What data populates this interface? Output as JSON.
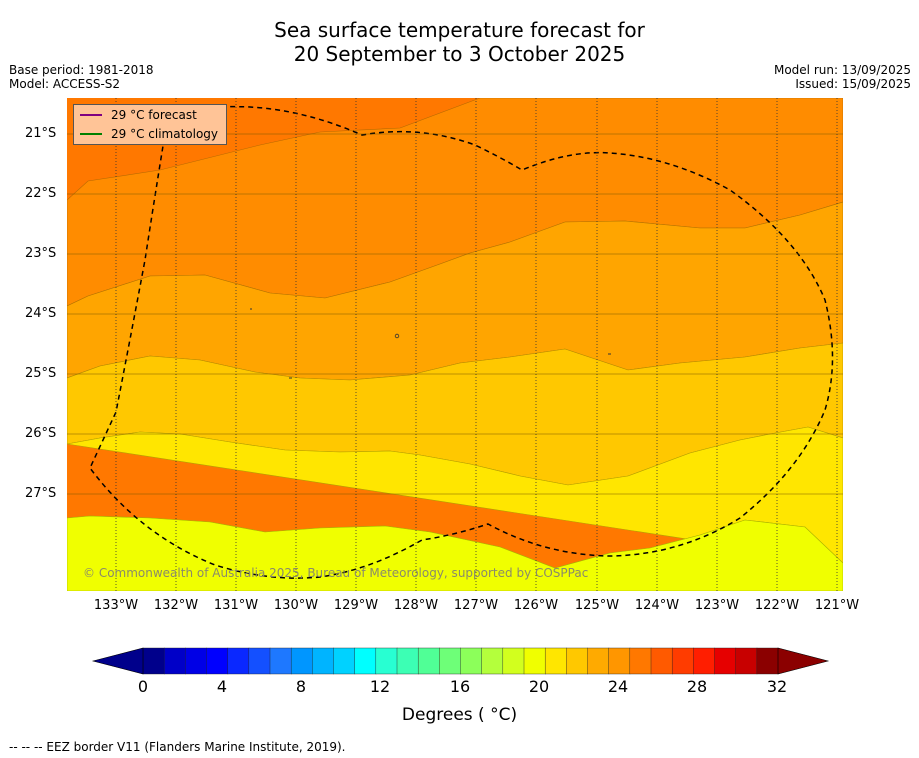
{
  "title": {
    "line1": "Sea surface temperature forecast for",
    "line2": "20 September to 3 October 2025"
  },
  "meta_left": {
    "base_period": "Base period: 1981-2018",
    "model": "Model: ACCESS-S2"
  },
  "meta_right": {
    "model_run": "Model run: 13/09/2025",
    "issued": "Issued: 15/09/2025"
  },
  "legend": {
    "forecast": "29 °C  forecast",
    "forecast_color": "#800080",
    "climatology": "29 °C  climatology",
    "climatology_color": "#008000"
  },
  "latitude_labels": [
    "21°S",
    "22°S",
    "23°S",
    "24°S",
    "25°S",
    "26°S",
    "27°S"
  ],
  "longitude_labels": [
    "133°W",
    "132°W",
    "131°W",
    "130°W",
    "129°W",
    "128°W",
    "127°W",
    "126°W",
    "125°W",
    "124°W",
    "123°W",
    "122°W",
    "121°W"
  ],
  "copyright": "© Commonwealth of Australia 2025, Bureau of Meteorology, supported by COSPPac",
  "colorbar": {
    "ticks": [
      "0",
      "4",
      "8",
      "12",
      "16",
      "20",
      "24",
      "28",
      "32"
    ],
    "units": "Degrees ( °C)",
    "colors": [
      "#00008b",
      "#0000c8",
      "#0000e6",
      "#0000ff",
      "#0a28ff",
      "#1450ff",
      "#1e78ff",
      "#0096ff",
      "#00b4ff",
      "#00d2ff",
      "#00ffff",
      "#28ffd2",
      "#3cffb4",
      "#50ff96",
      "#6eff78",
      "#8cff5a",
      "#b4ff3c",
      "#d2ff1e",
      "#f0ff00",
      "#ffe600",
      "#ffc800",
      "#ffaa00",
      "#ff9600",
      "#ff7800",
      "#ff5a00",
      "#ff3c00",
      "#ff1e00",
      "#e60000",
      "#c80000",
      "#8b0000"
    ]
  },
  "footnote": "--  --  -- EEZ border V11 (Flanders Marine Institute, 2019)."
}
